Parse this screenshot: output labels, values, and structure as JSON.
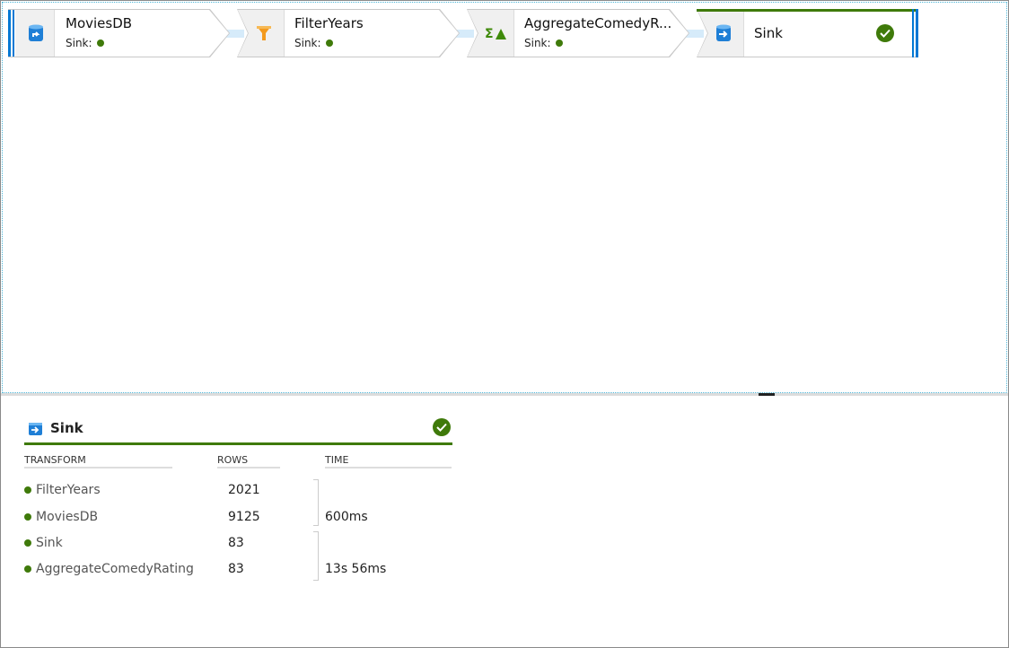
{
  "pipeline": {
    "nodes": [
      {
        "name": "MoviesDB",
        "sub_label": "Sink:",
        "icon": "source-database-icon"
      },
      {
        "name": "FilterYears",
        "sub_label": "Sink:",
        "icon": "filter-funnel-icon"
      },
      {
        "name": "AggregateComedyR...",
        "sub_label": "Sink:",
        "icon": "aggregate-sigma-icon"
      },
      {
        "name": "Sink",
        "icon": "sink-database-icon",
        "status": "succeeded"
      }
    ]
  },
  "details": {
    "title": "Sink",
    "status": "succeeded",
    "headers": {
      "transform": "TRANSFORM",
      "rows": "ROWS",
      "time": "TIME"
    },
    "rows": [
      {
        "transform": "FilterYears",
        "rows": "2021"
      },
      {
        "transform": "MoviesDB",
        "rows": "9125"
      },
      {
        "transform": "Sink",
        "rows": "83"
      },
      {
        "transform": "AggregateComedyRating",
        "rows": "83"
      }
    ],
    "times": [
      "600ms",
      "13s 56ms"
    ]
  },
  "colors": {
    "success": "#3f7a0a",
    "accent": "#0078d4",
    "connector": "#d6ebfa"
  }
}
